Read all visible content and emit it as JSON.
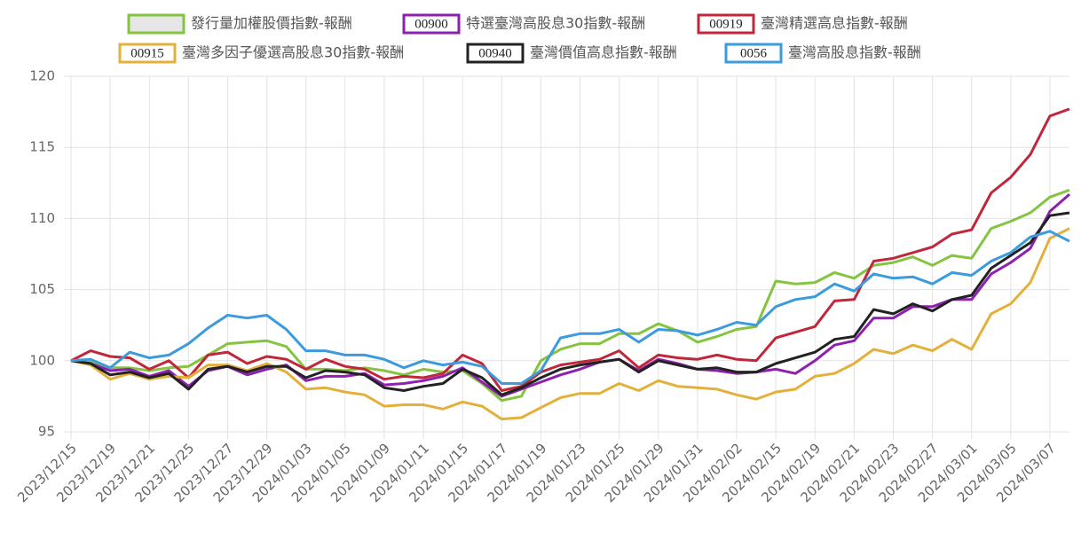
{
  "chart_data": {
    "type": "line",
    "categories": [
      "2023/12/15",
      null,
      "2023/12/19",
      null,
      "2023/12/21",
      null,
      "2023/12/25",
      null,
      "2023/12/27",
      null,
      "2023/12/29",
      null,
      "2024/01/03",
      null,
      "2024/01/05",
      null,
      "2024/01/09",
      null,
      "2024/01/11",
      null,
      "2024/01/15",
      null,
      "2024/01/17",
      null,
      "2024/01/19",
      null,
      "2024/01/23",
      null,
      "2024/01/25",
      null,
      "2024/01/29",
      null,
      "2024/01/31",
      null,
      "2024/02/02",
      null,
      "2024/02/15",
      null,
      "2024/02/19",
      null,
      "2024/02/21",
      null,
      "2024/02/23",
      null,
      "2024/02/27",
      null,
      "2024/03/01",
      null,
      "2024/03/05",
      null,
      "2024/03/07",
      null
    ],
    "ylim": [
      95,
      120
    ],
    "yticks": [
      95,
      100,
      105,
      110,
      115,
      120
    ],
    "grid": true,
    "series": [
      {
        "name": "發行量加權股價指數-報酬",
        "color": "#84c441",
        "values": [
          100,
          99.9,
          99.5,
          99.5,
          99.3,
          99.5,
          99.6,
          100.4,
          101.2,
          101.3,
          101.4,
          101.0,
          99.4,
          99.4,
          99.3,
          99.5,
          99.3,
          99.0,
          99.4,
          99.2,
          99.3,
          98.4,
          97.2,
          97.5,
          100.0,
          100.8,
          101.2,
          101.2,
          101.9,
          101.9,
          102.6,
          102.1,
          101.3,
          101.7,
          102.2,
          102.4,
          105.6,
          105.4,
          105.5,
          106.2,
          105.8,
          106.7,
          106.9,
          107.3,
          106.7,
          107.4,
          107.2,
          109.3,
          109.8,
          110.4,
          111.5,
          112.0
        ]
      },
      {
        "name": "特選臺灣高股息30指數-報酬",
        "code": "00900",
        "color": "#8e1fb0",
        "values": [
          100,
          99.8,
          99.3,
          99.4,
          98.9,
          99.3,
          98.2,
          99.3,
          99.6,
          99.0,
          99.4,
          99.7,
          98.6,
          98.9,
          98.9,
          99.1,
          98.3,
          98.4,
          98.6,
          98.9,
          99.5,
          98.5,
          97.5,
          98.0,
          98.5,
          99.0,
          99.4,
          99.9,
          100.1,
          99.3,
          100.1,
          99.8,
          99.4,
          99.3,
          99.1,
          99.2,
          99.4,
          99.1,
          100.0,
          101.1,
          101.4,
          103.0,
          103.0,
          103.8,
          103.8,
          104.3,
          104.3,
          106.1,
          106.9,
          107.9,
          110.5,
          111.7
        ]
      },
      {
        "name": "臺灣精選高息指數-報酬",
        "code": "00919",
        "color": "#c1273a",
        "values": [
          100,
          100.7,
          100.3,
          100.2,
          99.4,
          100.0,
          98.8,
          100.4,
          100.6,
          99.8,
          100.3,
          100.1,
          99.4,
          100.1,
          99.6,
          99.4,
          98.7,
          98.9,
          98.8,
          99.1,
          100.4,
          99.8,
          97.9,
          98.2,
          99.2,
          99.7,
          99.9,
          100.1,
          100.7,
          99.5,
          100.4,
          100.2,
          100.1,
          100.4,
          100.1,
          100.0,
          101.6,
          102.0,
          102.4,
          104.2,
          104.3,
          107.0,
          107.2,
          107.6,
          108.0,
          108.9,
          109.2,
          111.8,
          112.9,
          114.5,
          117.2,
          117.7
        ]
      },
      {
        "name": "臺灣多因子優選高股息30指數-報酬",
        "code": "00915",
        "color": "#e3b13b",
        "values": [
          100,
          99.7,
          98.7,
          99.1,
          98.7,
          98.9,
          98.8,
          99.7,
          99.7,
          99.3,
          99.8,
          99.2,
          98.0,
          98.1,
          97.8,
          97.6,
          96.8,
          96.9,
          96.9,
          96.6,
          97.1,
          96.8,
          95.9,
          96.0,
          96.7,
          97.4,
          97.7,
          97.7,
          98.4,
          97.9,
          98.6,
          98.2,
          98.1,
          98.0,
          97.6,
          97.3,
          97.8,
          98.0,
          98.9,
          99.1,
          99.8,
          100.8,
          100.5,
          101.1,
          100.7,
          101.5,
          100.8,
          103.3,
          104.0,
          105.5,
          108.6,
          109.3
        ]
      },
      {
        "name": "臺灣價值高息指數-報酬",
        "code": "00940",
        "color": "#222222",
        "values": [
          100,
          99.8,
          99.0,
          99.2,
          98.8,
          99.1,
          98.0,
          99.4,
          99.6,
          99.2,
          99.6,
          99.6,
          98.8,
          99.3,
          99.2,
          99.0,
          98.1,
          97.9,
          98.2,
          98.4,
          99.4,
          98.8,
          97.6,
          98.1,
          98.8,
          99.4,
          99.7,
          99.9,
          100.1,
          99.2,
          100.0,
          99.7,
          99.4,
          99.5,
          99.2,
          99.2,
          99.8,
          100.2,
          100.6,
          101.5,
          101.7,
          103.6,
          103.3,
          104.0,
          103.5,
          104.3,
          104.6,
          106.5,
          107.4,
          108.3,
          110.2,
          110.4
        ]
      },
      {
        "name": "臺灣高股息指數-報酬",
        "code": "0056",
        "color": "#3b9bdc",
        "values": [
          100,
          100.1,
          99.5,
          100.6,
          100.2,
          100.4,
          101.2,
          102.3,
          103.2,
          103.0,
          103.2,
          102.2,
          100.7,
          100.7,
          100.4,
          100.4,
          100.1,
          99.5,
          100.0,
          99.7,
          99.9,
          99.6,
          98.4,
          98.4,
          99.3,
          101.6,
          101.9,
          101.9,
          102.2,
          101.3,
          102.2,
          102.1,
          101.8,
          102.2,
          102.7,
          102.5,
          103.8,
          104.3,
          104.5,
          105.4,
          104.9,
          106.1,
          105.8,
          105.9,
          105.4,
          106.2,
          106.0,
          107.0,
          107.6,
          108.7,
          109.1,
          108.4
        ]
      }
    ]
  }
}
